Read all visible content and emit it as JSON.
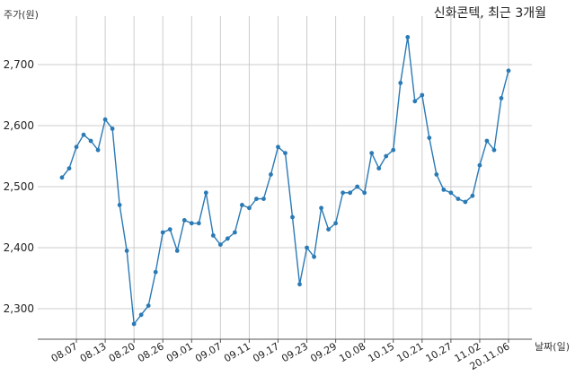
{
  "chart_data": {
    "type": "line",
    "title": "신화콘텍, 최근 3개월",
    "ylabel": "주가(원)",
    "xlabel": "날짜(일)",
    "ylim": [
      2250,
      2750
    ],
    "y_ticks": [
      2300,
      2400,
      2500,
      2600,
      2700
    ],
    "y_tick_labels": [
      "2,300",
      "2,400",
      "2,500",
      "2,600",
      "2,700"
    ],
    "x_tick_labels": [
      "08.07",
      "08.13",
      "08.20",
      "08.26",
      "09.01",
      "09.07",
      "09.11",
      "09.17",
      "09.23",
      "09.29",
      "10.08",
      "10.15",
      "10.21",
      "10.27",
      "11.02",
      "20.11.06"
    ],
    "x_tick_indices": [
      2,
      6,
      10,
      14,
      18,
      22,
      26,
      30,
      34,
      38,
      42,
      46,
      50,
      54,
      58,
      62
    ],
    "grid": true,
    "color": "#2a7ab5",
    "values": [
      2515,
      2530,
      2565,
      2585,
      2575,
      2560,
      2610,
      2595,
      2470,
      2395,
      2275,
      2290,
      2305,
      2360,
      2425,
      2430,
      2395,
      2445,
      2440,
      2440,
      2490,
      2420,
      2405,
      2415,
      2425,
      2470,
      2465,
      2480,
      2480,
      2520,
      2565,
      2555,
      2450,
      2340,
      2400,
      2385,
      2465,
      2430,
      2440,
      2490,
      2490,
      2500,
      2490,
      2555,
      2530,
      2550,
      2560,
      2670,
      2745,
      2640,
      2650,
      2580,
      2520,
      2495,
      2490,
      2480,
      2475,
      2485,
      2535,
      2575,
      2560,
      2645,
      2690
    ]
  }
}
